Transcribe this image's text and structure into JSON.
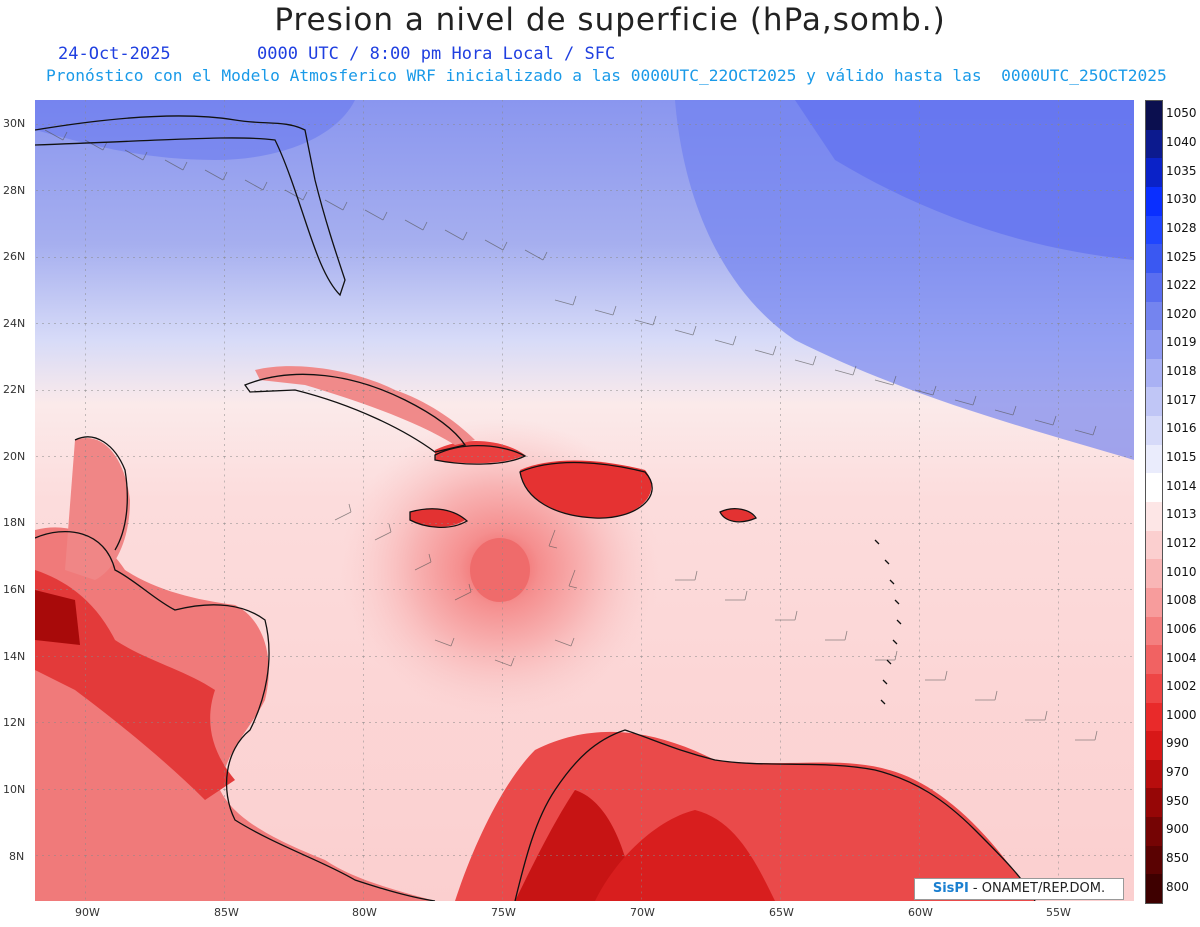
{
  "title": "Presion a nivel de superficie (hPa,somb.)",
  "date": "24-Oct-2025",
  "time_info": "0000 UTC / 8:00 pm Hora Local / SFC",
  "forecast_info": "Pronóstico con el Modelo Atmosferico WRF inicializado a las 0000UTC_22OCT2025 y válido hasta las  0000UTC_25OCT2025",
  "lat_labels": [
    "30N",
    "28N",
    "26N",
    "24N",
    "22N",
    "20N",
    "18N",
    "16N",
    "14N",
    "12N",
    "10N",
    "8N"
  ],
  "lon_labels": [
    "90W",
    "85W",
    "80W",
    "75W",
    "70W",
    "65W",
    "60W",
    "55W"
  ],
  "colorbar": {
    "levels": [
      "1050",
      "1040",
      "1035",
      "1030",
      "1028",
      "1025",
      "1022",
      "1020",
      "1019",
      "1018",
      "1017",
      "1016",
      "1015",
      "1014",
      "1013",
      "1012",
      "1010",
      "1008",
      "1006",
      "1004",
      "1002",
      "1000",
      "990",
      "970",
      "950",
      "900",
      "850",
      "800"
    ],
    "colors": [
      "#0b0f4f",
      "#0c1a8e",
      "#0a22c8",
      "#0a2fff",
      "#1f45ff",
      "#3a58f2",
      "#5a6ef0",
      "#7484ef",
      "#8f9af2",
      "#a9b1f4",
      "#c0c6f6",
      "#d6daf9",
      "#eaecfc",
      "#ffffff",
      "#fde6e6",
      "#fbcfcf",
      "#f9b6b6",
      "#f79c9c",
      "#f47f7f",
      "#f16262",
      "#ee4545",
      "#e92a2a",
      "#d81818",
      "#b80d0d",
      "#960606",
      "#750404",
      "#5a0202",
      "#3e0000"
    ]
  },
  "credit": {
    "logo": "SisPI",
    "text": "- ONAMET/REP.DOM."
  }
}
